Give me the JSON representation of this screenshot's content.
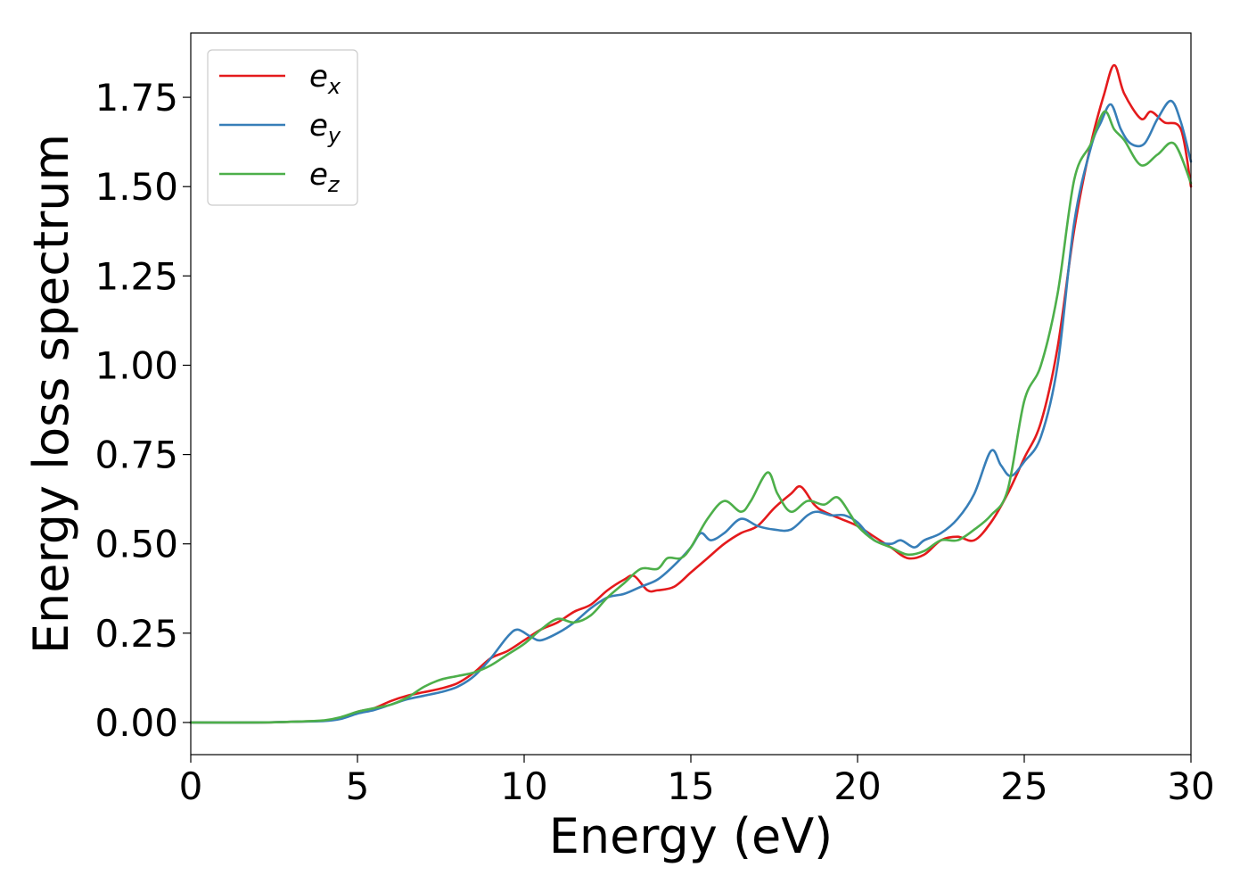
{
  "chart_data": {
    "type": "line",
    "xlabel": "Energy (eV)",
    "ylabel": "Energy loss spectrum",
    "xlim": [
      0,
      30
    ],
    "ylim": [
      -0.09,
      1.93
    ],
    "x_ticks": [
      0,
      5,
      10,
      15,
      20,
      25,
      30
    ],
    "x_tick_labels": [
      "0",
      "5",
      "10",
      "15",
      "20",
      "25",
      "30"
    ],
    "y_ticks": [
      0.0,
      0.25,
      0.5,
      0.75,
      1.0,
      1.25,
      1.5,
      1.75
    ],
    "y_tick_labels": [
      "0.00",
      "0.25",
      "0.50",
      "0.75",
      "1.00",
      "1.25",
      "1.50",
      "1.75"
    ],
    "grid": false,
    "legend_position": "top-left",
    "series": [
      {
        "name": "e_x",
        "label_main": "e",
        "label_sub": "x",
        "color": "#e41a1c",
        "points": [
          [
            0,
            0
          ],
          [
            2,
            0
          ],
          [
            3,
            0.002
          ],
          [
            4,
            0.005
          ],
          [
            4.5,
            0.012
          ],
          [
            5,
            0.03
          ],
          [
            5.5,
            0.04
          ],
          [
            6,
            0.06
          ],
          [
            6.5,
            0.075
          ],
          [
            7,
            0.085
          ],
          [
            7.5,
            0.095
          ],
          [
            8,
            0.11
          ],
          [
            8.5,
            0.14
          ],
          [
            9,
            0.18
          ],
          [
            9.5,
            0.2
          ],
          [
            10,
            0.23
          ],
          [
            10.5,
            0.26
          ],
          [
            11,
            0.28
          ],
          [
            11.5,
            0.31
          ],
          [
            12,
            0.33
          ],
          [
            12.5,
            0.37
          ],
          [
            13,
            0.4
          ],
          [
            13.3,
            0.41
          ],
          [
            13.7,
            0.37
          ],
          [
            14,
            0.37
          ],
          [
            14.5,
            0.38
          ],
          [
            15,
            0.42
          ],
          [
            15.5,
            0.46
          ],
          [
            16,
            0.5
          ],
          [
            16.5,
            0.53
          ],
          [
            17,
            0.55
          ],
          [
            17.5,
            0.6
          ],
          [
            18,
            0.64
          ],
          [
            18.3,
            0.66
          ],
          [
            18.7,
            0.61
          ],
          [
            19,
            0.59
          ],
          [
            19.5,
            0.57
          ],
          [
            20,
            0.55
          ],
          [
            20.5,
            0.52
          ],
          [
            21,
            0.49
          ],
          [
            21.5,
            0.46
          ],
          [
            22,
            0.47
          ],
          [
            22.5,
            0.51
          ],
          [
            23,
            0.52
          ],
          [
            23.5,
            0.51
          ],
          [
            24,
            0.56
          ],
          [
            24.5,
            0.64
          ],
          [
            25,
            0.74
          ],
          [
            25.5,
            0.84
          ],
          [
            26,
            1.05
          ],
          [
            26.5,
            1.38
          ],
          [
            27,
            1.62
          ],
          [
            27.4,
            1.76
          ],
          [
            27.7,
            1.84
          ],
          [
            28,
            1.76
          ],
          [
            28.5,
            1.69
          ],
          [
            28.8,
            1.71
          ],
          [
            29.2,
            1.68
          ],
          [
            29.7,
            1.66
          ],
          [
            30,
            1.5
          ]
        ]
      },
      {
        "name": "e_y",
        "label_main": "e",
        "label_sub": "y",
        "color": "#377eb8",
        "points": [
          [
            0,
            0
          ],
          [
            2,
            0
          ],
          [
            3,
            0.002
          ],
          [
            4,
            0.004
          ],
          [
            4.5,
            0.01
          ],
          [
            5,
            0.025
          ],
          [
            5.5,
            0.035
          ],
          [
            6,
            0.05
          ],
          [
            6.5,
            0.065
          ],
          [
            7,
            0.075
          ],
          [
            7.5,
            0.085
          ],
          [
            8,
            0.1
          ],
          [
            8.5,
            0.13
          ],
          [
            9,
            0.18
          ],
          [
            9.5,
            0.24
          ],
          [
            9.8,
            0.26
          ],
          [
            10.2,
            0.24
          ],
          [
            10.5,
            0.23
          ],
          [
            11,
            0.25
          ],
          [
            11.5,
            0.28
          ],
          [
            12,
            0.32
          ],
          [
            12.5,
            0.35
          ],
          [
            13,
            0.36
          ],
          [
            13.5,
            0.38
          ],
          [
            14,
            0.4
          ],
          [
            14.5,
            0.44
          ],
          [
            15,
            0.49
          ],
          [
            15.3,
            0.53
          ],
          [
            15.6,
            0.51
          ],
          [
            16,
            0.53
          ],
          [
            16.5,
            0.57
          ],
          [
            17,
            0.55
          ],
          [
            17.5,
            0.54
          ],
          [
            18,
            0.54
          ],
          [
            18.5,
            0.58
          ],
          [
            18.8,
            0.59
          ],
          [
            19.2,
            0.58
          ],
          [
            19.6,
            0.58
          ],
          [
            20,
            0.56
          ],
          [
            20.5,
            0.51
          ],
          [
            21,
            0.5
          ],
          [
            21.3,
            0.51
          ],
          [
            21.7,
            0.49
          ],
          [
            22,
            0.51
          ],
          [
            22.5,
            0.53
          ],
          [
            23,
            0.57
          ],
          [
            23.5,
            0.64
          ],
          [
            24,
            0.76
          ],
          [
            24.3,
            0.72
          ],
          [
            24.6,
            0.69
          ],
          [
            25,
            0.73
          ],
          [
            25.5,
            0.8
          ],
          [
            26,
            1.0
          ],
          [
            26.5,
            1.4
          ],
          [
            27,
            1.61
          ],
          [
            27.3,
            1.68
          ],
          [
            27.6,
            1.73
          ],
          [
            27.9,
            1.66
          ],
          [
            28.2,
            1.62
          ],
          [
            28.6,
            1.62
          ],
          [
            29,
            1.69
          ],
          [
            29.4,
            1.74
          ],
          [
            29.7,
            1.68
          ],
          [
            30,
            1.57
          ]
        ]
      },
      {
        "name": "e_z",
        "label_main": "e",
        "label_sub": "z",
        "color": "#4daf4a",
        "points": [
          [
            0,
            0
          ],
          [
            2,
            0
          ],
          [
            3,
            0.002
          ],
          [
            4,
            0.006
          ],
          [
            4.5,
            0.015
          ],
          [
            5,
            0.03
          ],
          [
            5.5,
            0.04
          ],
          [
            6,
            0.05
          ],
          [
            6.5,
            0.07
          ],
          [
            7,
            0.1
          ],
          [
            7.5,
            0.12
          ],
          [
            8,
            0.13
          ],
          [
            8.5,
            0.14
          ],
          [
            9,
            0.16
          ],
          [
            9.5,
            0.19
          ],
          [
            10,
            0.22
          ],
          [
            10.5,
            0.26
          ],
          [
            11,
            0.29
          ],
          [
            11.5,
            0.28
          ],
          [
            12,
            0.3
          ],
          [
            12.5,
            0.35
          ],
          [
            13,
            0.39
          ],
          [
            13.5,
            0.43
          ],
          [
            14,
            0.43
          ],
          [
            14.3,
            0.46
          ],
          [
            14.7,
            0.46
          ],
          [
            15,
            0.49
          ],
          [
            15.5,
            0.57
          ],
          [
            16,
            0.62
          ],
          [
            16.5,
            0.59
          ],
          [
            16.8,
            0.62
          ],
          [
            17.3,
            0.7
          ],
          [
            17.6,
            0.64
          ],
          [
            18,
            0.59
          ],
          [
            18.5,
            0.62
          ],
          [
            19,
            0.61
          ],
          [
            19.4,
            0.63
          ],
          [
            19.8,
            0.58
          ],
          [
            20,
            0.55
          ],
          [
            20.5,
            0.51
          ],
          [
            21,
            0.49
          ],
          [
            21.5,
            0.47
          ],
          [
            22,
            0.48
          ],
          [
            22.5,
            0.51
          ],
          [
            23,
            0.51
          ],
          [
            23.5,
            0.54
          ],
          [
            24,
            0.58
          ],
          [
            24.5,
            0.65
          ],
          [
            25,
            0.9
          ],
          [
            25.5,
            1.0
          ],
          [
            26,
            1.2
          ],
          [
            26.5,
            1.52
          ],
          [
            27,
            1.62
          ],
          [
            27.4,
            1.71
          ],
          [
            27.7,
            1.66
          ],
          [
            28,
            1.63
          ],
          [
            28.5,
            1.56
          ],
          [
            29,
            1.59
          ],
          [
            29.5,
            1.62
          ],
          [
            30,
            1.51
          ]
        ]
      }
    ]
  }
}
